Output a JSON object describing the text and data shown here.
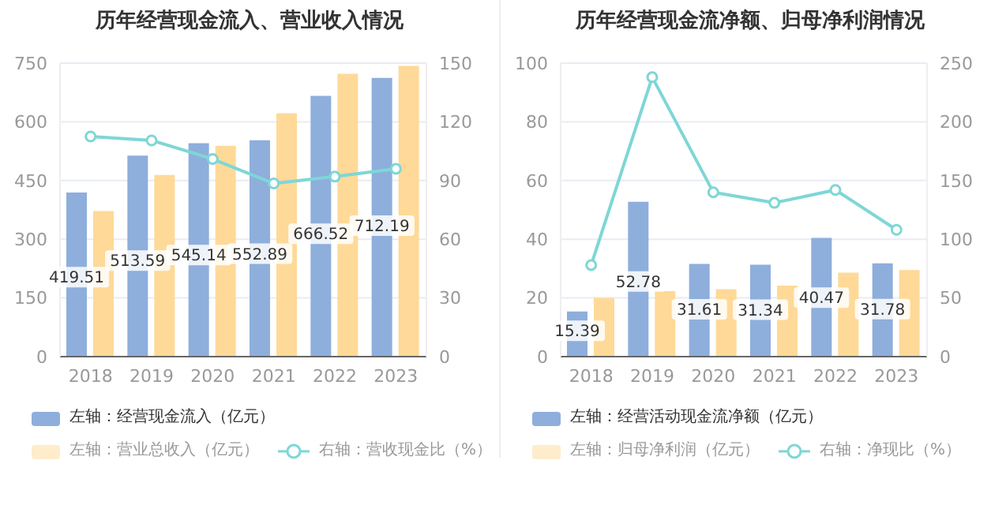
{
  "chart_data": [
    {
      "type": "bar",
      "title": "历年经营现金流入、营业收入情况",
      "categories": [
        "2018",
        "2019",
        "2020",
        "2021",
        "2022",
        "2023"
      ],
      "ylim": [
        0,
        750
      ],
      "yticks": [
        0,
        150,
        300,
        450,
        600,
        750
      ],
      "y2lim": [
        0,
        150
      ],
      "y2ticks": [
        0,
        30,
        60,
        90,
        120,
        150
      ],
      "grid": "y",
      "legend": "bottom",
      "marker": "circle",
      "series": [
        {
          "name": "左轴：经营现金流入（亿元）",
          "color": "#8eaedc",
          "values": [
            419.51,
            513.59,
            545.14,
            552.89,
            666.52,
            712.19
          ],
          "value_labels": [
            "419.51",
            "513.59",
            "545.14",
            "552.89",
            "666.52",
            "712.19"
          ]
        },
        {
          "name": "左轴：营业总收入（亿元）",
          "color": "#ffd998",
          "values": [
            372,
            464,
            539,
            622,
            723,
            743
          ]
        },
        {
          "name": "右轴：营收现金比（%）",
          "type": "line",
          "axis": "y2",
          "color": "#7fd6d6",
          "values": [
            112.5,
            110.5,
            101,
            88.5,
            92,
            96
          ]
        }
      ]
    },
    {
      "type": "bar",
      "title": "历年经营现金流净额、归母净利润情况",
      "categories": [
        "2018",
        "2019",
        "2020",
        "2021",
        "2022",
        "2023"
      ],
      "ylim": [
        0,
        100
      ],
      "yticks": [
        0,
        20,
        40,
        60,
        80,
        100
      ],
      "y2lim": [
        0,
        250
      ],
      "y2ticks": [
        0,
        50,
        100,
        150,
        200,
        250
      ],
      "grid": "y",
      "legend": "bottom",
      "marker": "circle",
      "series": [
        {
          "name": "左轴：经营活动现金流净额（亿元）",
          "color": "#8eaedc",
          "values": [
            15.39,
            52.78,
            31.61,
            31.34,
            40.47,
            31.78
          ],
          "value_labels": [
            "15.39",
            "52.78",
            "31.61",
            "31.34",
            "40.47",
            "31.78"
          ]
        },
        {
          "name": "左轴：归母净利润（亿元）",
          "color": "#ffd998",
          "values": [
            20,
            22.3,
            23,
            24.2,
            28.6,
            29.5
          ]
        },
        {
          "name": "右轴：净现比（%）",
          "type": "line",
          "axis": "y2",
          "color": "#7fd6d6",
          "values": [
            78,
            238,
            140,
            131,
            142,
            108
          ]
        }
      ]
    }
  ]
}
